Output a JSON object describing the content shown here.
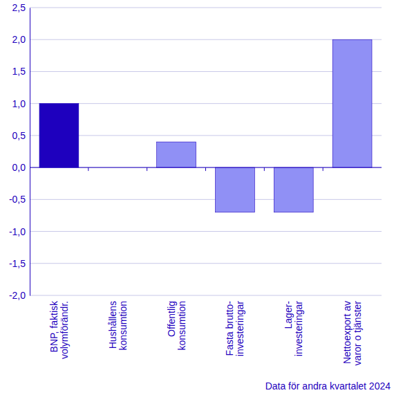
{
  "chart_data": {
    "type": "bar",
    "categories": [
      "BNP, faktisk\nvolymförändr.",
      "Hushållens\nkonsumtion",
      "Offentlig\nkonsumtion",
      "Fasta brutto-\ninvesteringar",
      "Lager-\ninvesteringar",
      "Nettoexport av\nvaror o tjänster"
    ],
    "values": [
      1.0,
      0.0,
      0.4,
      -0.7,
      -0.7,
      2.0
    ],
    "colors": [
      "#1e00be",
      "#9090f5",
      "#9090f5",
      "#9090f5",
      "#9090f5",
      "#9090f5"
    ],
    "ylim": [
      -2.0,
      2.5
    ],
    "yticks": [
      {
        "value": -2.0,
        "label": "-2,0"
      },
      {
        "value": -1.5,
        "label": "-1,5"
      },
      {
        "value": -1.0,
        "label": "-1,0"
      },
      {
        "value": -0.5,
        "label": "-0,5"
      },
      {
        "value": 0.0,
        "label": "0,0"
      },
      {
        "value": 0.5,
        "label": "0,5"
      },
      {
        "value": 1.0,
        "label": "1,0"
      },
      {
        "value": 1.5,
        "label": "1,5"
      },
      {
        "value": 2.0,
        "label": "2,0"
      },
      {
        "value": 2.5,
        "label": "2,5"
      }
    ],
    "grid": true,
    "annotation": "Data för andra kvartalet 2024"
  }
}
